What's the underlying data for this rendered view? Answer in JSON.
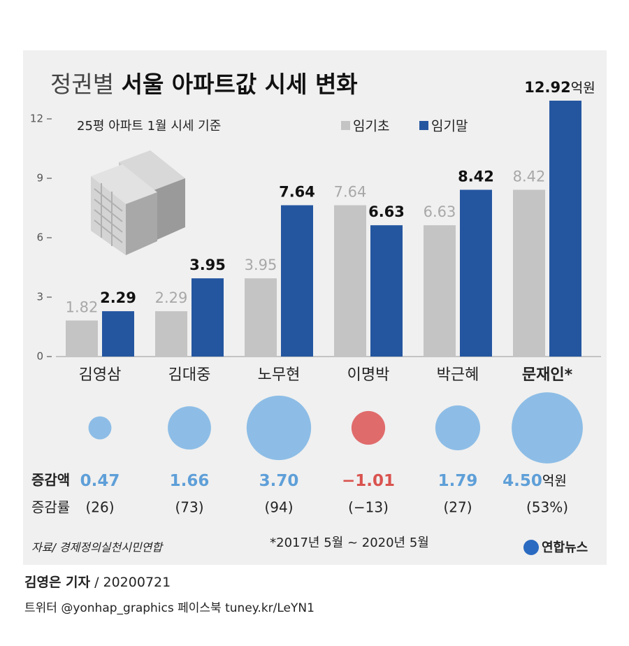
{
  "chart_data": {
    "type": "bar",
    "title_prefix": "정권별",
    "title": "서울 아파트값 시세 변화",
    "subtitle": "25평 아파트 1월 시세 기준",
    "categories": [
      "김영삼",
      "김대중",
      "노무현",
      "이명박",
      "박근혜",
      "문재인*"
    ],
    "series": [
      {
        "name": "임기초",
        "color": "#c4c4c4",
        "values": [
          1.82,
          2.29,
          3.95,
          7.64,
          6.63,
          8.42
        ]
      },
      {
        "name": "임기말",
        "color": "#2456a0",
        "values": [
          2.29,
          3.95,
          7.64,
          6.63,
          8.42,
          12.92
        ]
      }
    ],
    "unit": "억원",
    "ylim": [
      0,
      13
    ],
    "yticks": [
      0,
      3,
      6,
      9,
      12
    ],
    "change": {
      "label": "증감액",
      "values": [
        0.47,
        1.66,
        3.7,
        -1.01,
        1.79,
        4.5
      ],
      "value_labels": [
        "0.47",
        "1.66",
        "3.70",
        "−1.01",
        "1.79",
        "4.50"
      ],
      "positive_color": "#8dbde6",
      "negative_color": "#e06b6b"
    },
    "rate": {
      "label": "증감률",
      "values": [
        26,
        73,
        94,
        -13,
        27,
        53
      ],
      "value_labels": [
        "(26)",
        "(73)",
        "(94)",
        "(−13)",
        "(27)",
        "(53%)"
      ]
    },
    "source": "자료/ 경제정의실천시민연합",
    "note": "*2017년 5월 ~ 2020년 5월",
    "logo": "연합뉴스"
  },
  "byline": {
    "author": "김영은 기자",
    "date": "/ 20200721",
    "contacts": "트위터 @yonhap_graphics  페이스북 tuney.kr/LeYN1"
  }
}
